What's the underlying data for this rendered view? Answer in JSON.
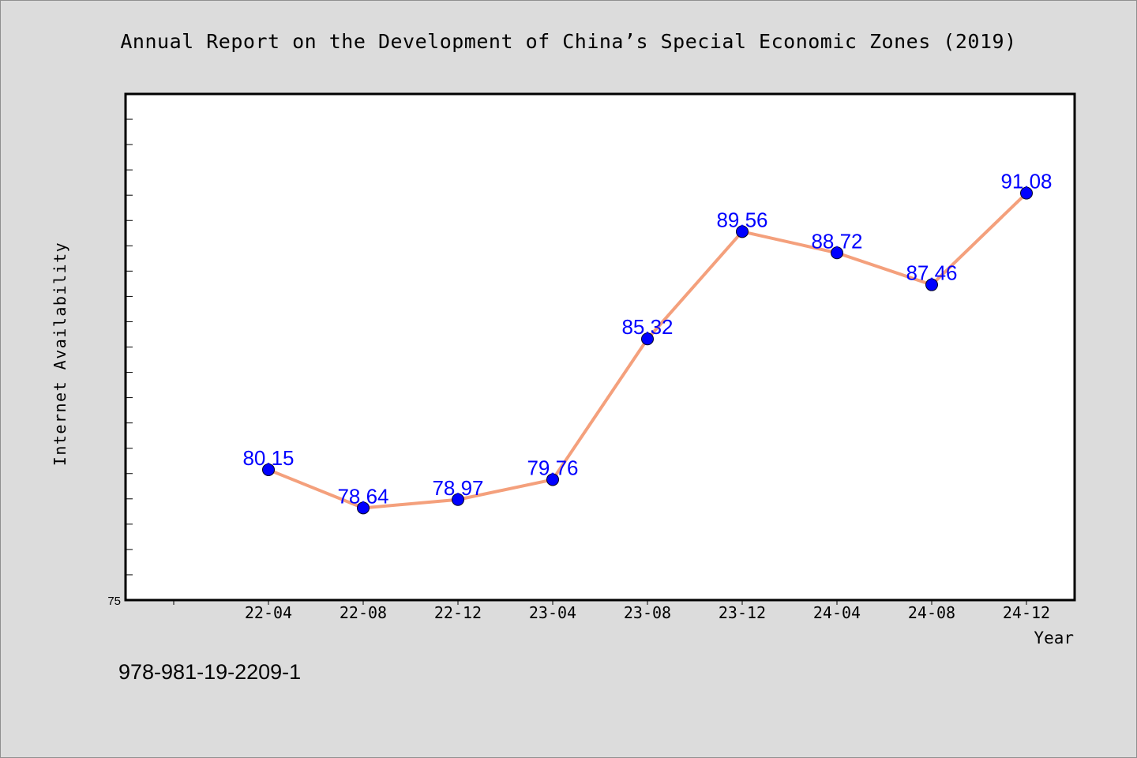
{
  "chart_data": {
    "type": "line",
    "title": "Annual Report on the Development of China’s Special Economic Zones (2019)",
    "xlabel": "Year",
    "ylabel": "Internet Availability",
    "categories": [
      "22-04",
      "22-08",
      "22-12",
      "23-04",
      "23-08",
      "23-12",
      "24-04",
      "24-08",
      "24-12"
    ],
    "series": [
      {
        "values": [
          80.15,
          78.64,
          78.97,
          79.76,
          85.32,
          89.56,
          88.72,
          87.46,
          91.08
        ]
      }
    ],
    "data_labels": [
      "80.15",
      "78.64",
      "78.97",
      "79.76",
      "85.32",
      "89.56",
      "88.72",
      "87.46",
      "91.08"
    ],
    "ylim": [
      75,
      95
    ],
    "y_tick_label": "75",
    "grid": false,
    "legend": "none",
    "colors": {
      "line": "#f4a07c",
      "marker": "#0000ff",
      "label": "#0000ff",
      "background": "#dcdcdc",
      "plot_background": "#ffffff"
    }
  },
  "footer": {
    "isbn": "978-981-19-2209-1"
  }
}
